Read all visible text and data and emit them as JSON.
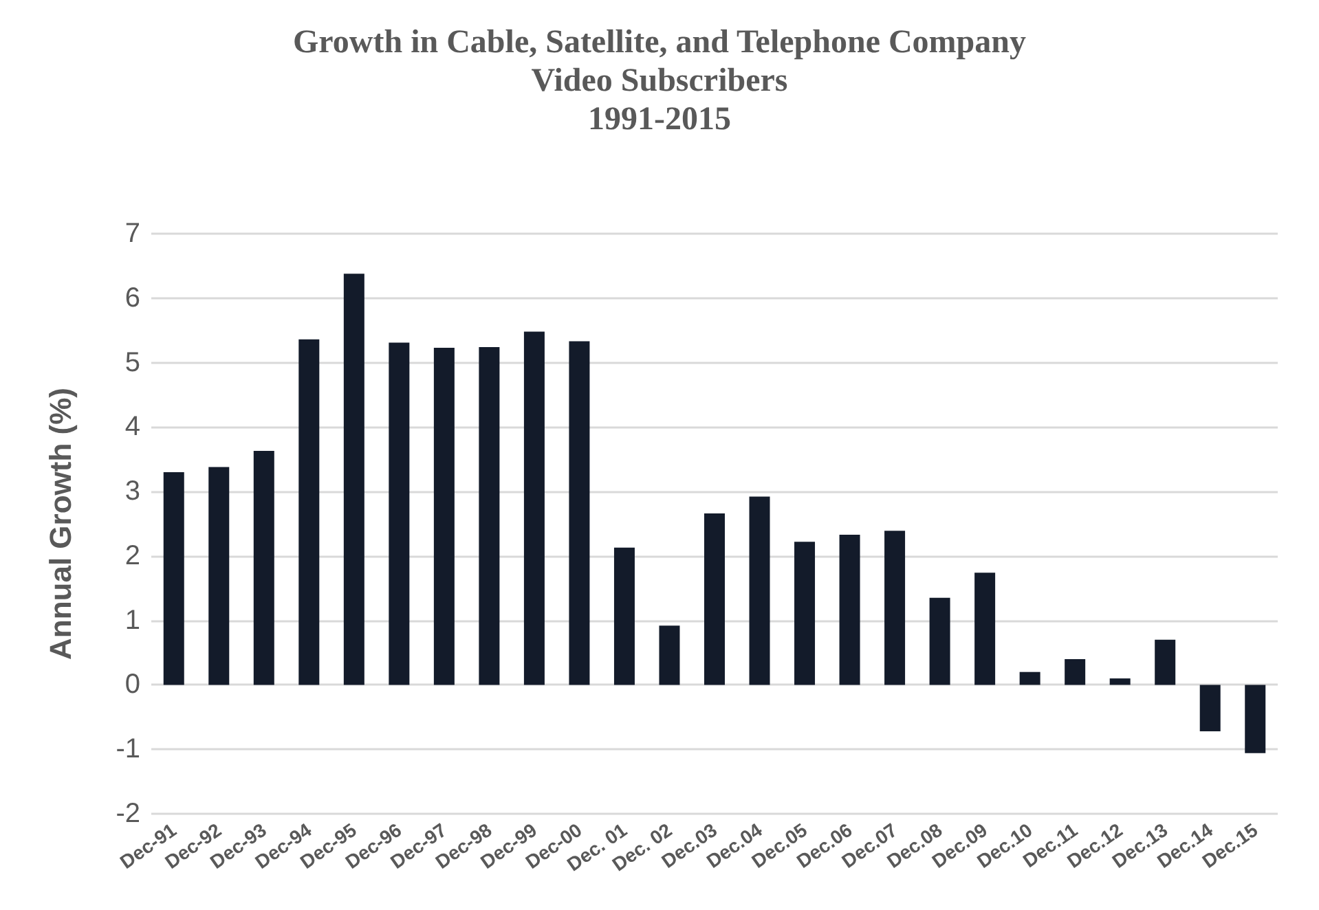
{
  "chart_data": {
    "type": "bar",
    "title": "Growth in Cable, Satellite, and Telephone Company\nVideo Subscribers\n1991-2015",
    "ylabel": "Annual Growth (%)",
    "categories": [
      "Dec-91",
      "Dec-92",
      "Dec-93",
      "Dec-94",
      "Dec-95",
      "Dec-96",
      "Dec-97",
      "Dec-98",
      "Dec-99",
      "Dec-00",
      "Dec. 01",
      "Dec. 02",
      "Dec.03",
      "Dec.04",
      "Dec.05",
      "Dec.06",
      "Dec.07",
      "Dec.08",
      "Dec.09",
      "Dec.10",
      "Dec.11",
      "Dec.12",
      "Dec.13",
      "Dec.14",
      "Dec.15"
    ],
    "values": [
      3.3,
      3.38,
      3.63,
      5.36,
      6.38,
      5.31,
      5.23,
      5.24,
      5.48,
      5.33,
      2.13,
      0.92,
      2.66,
      2.92,
      2.22,
      2.33,
      2.39,
      1.35,
      1.74,
      0.2,
      0.4,
      0.1,
      0.7,
      -0.72,
      -1.06
    ],
    "color": "#131b2a",
    "ylim": [
      -2,
      7
    ],
    "yticks": [
      -2,
      -1,
      0,
      1,
      2,
      3,
      4,
      5,
      6,
      7
    ],
    "grid": "y"
  }
}
